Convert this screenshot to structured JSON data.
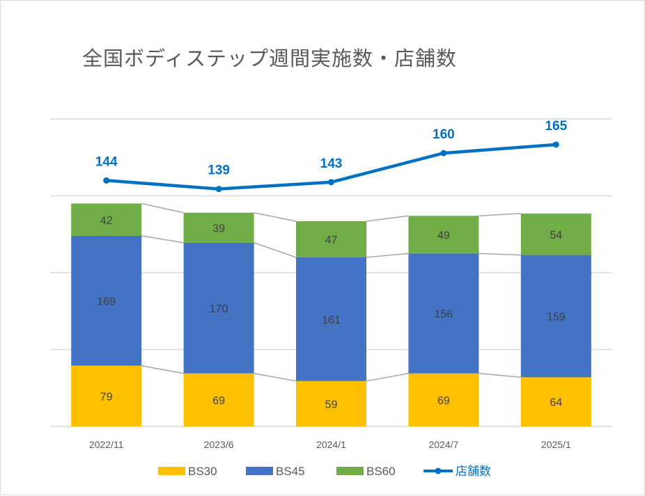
{
  "chart_data": {
    "type": "bar",
    "subtype": "stacked-bar-with-line",
    "title": "全国ボディステップ週間実施数・店舗数",
    "categories": [
      "2022/11",
      "2023/6",
      "2024/1",
      "2024/7",
      "2025/1"
    ],
    "series": [
      {
        "name": "BS30",
        "type": "bar",
        "color": "#ffc000",
        "values": [
          79,
          69,
          59,
          69,
          64
        ]
      },
      {
        "name": "BS45",
        "type": "bar",
        "color": "#4472c4",
        "values": [
          169,
          170,
          161,
          156,
          159
        ]
      },
      {
        "name": "BS60",
        "type": "bar",
        "color": "#70ad47",
        "values": [
          42,
          39,
          47,
          49,
          54
        ]
      },
      {
        "name": "店舗数",
        "type": "line",
        "axis": "secondary",
        "color": "#0070c0",
        "values": [
          144,
          139,
          143,
          160,
          165
        ]
      }
    ],
    "primary_ylim": [
      0,
      400
    ],
    "secondary_ylim": [
      0,
      180
    ],
    "gridlines": true,
    "y_axis_labels_visible": false,
    "series_lines": true,
    "legend_position": "bottom",
    "xlabel": "",
    "ylabel": ""
  }
}
